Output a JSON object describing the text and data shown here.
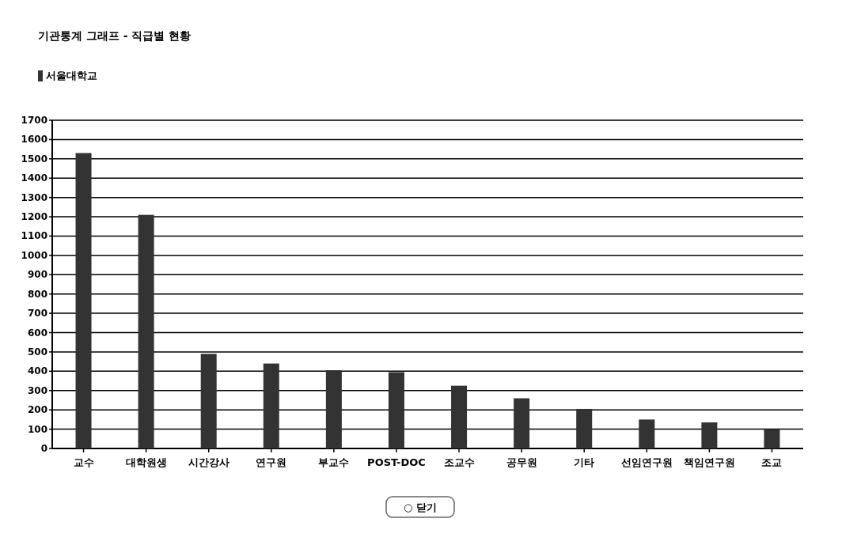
{
  "chart_data": {
    "type": "bar",
    "title": "기관통계 그래프 - 직급별 현황",
    "categories": [
      "교수",
      "대학원생",
      "시간강사",
      "연구원",
      "부교수",
      "POST-DOC",
      "조교수",
      "공무원",
      "기타",
      "선임연구원",
      "책임연구원",
      "조교"
    ],
    "series": [
      {
        "name": "서울대학교",
        "color": "#333333",
        "values": [
          1530,
          1210,
          490,
          440,
          405,
          395,
          325,
          260,
          205,
          150,
          135,
          100
        ]
      }
    ],
    "ylim": [
      0,
      1700
    ],
    "yticks": [
      0,
      100,
      200,
      300,
      400,
      500,
      600,
      700,
      800,
      900,
      1000,
      1100,
      1200,
      1300,
      1400,
      1500,
      1600,
      1700
    ],
    "grid": "y",
    "legend": "top left",
    "annotations": [
      "○ 닫기"
    ]
  }
}
